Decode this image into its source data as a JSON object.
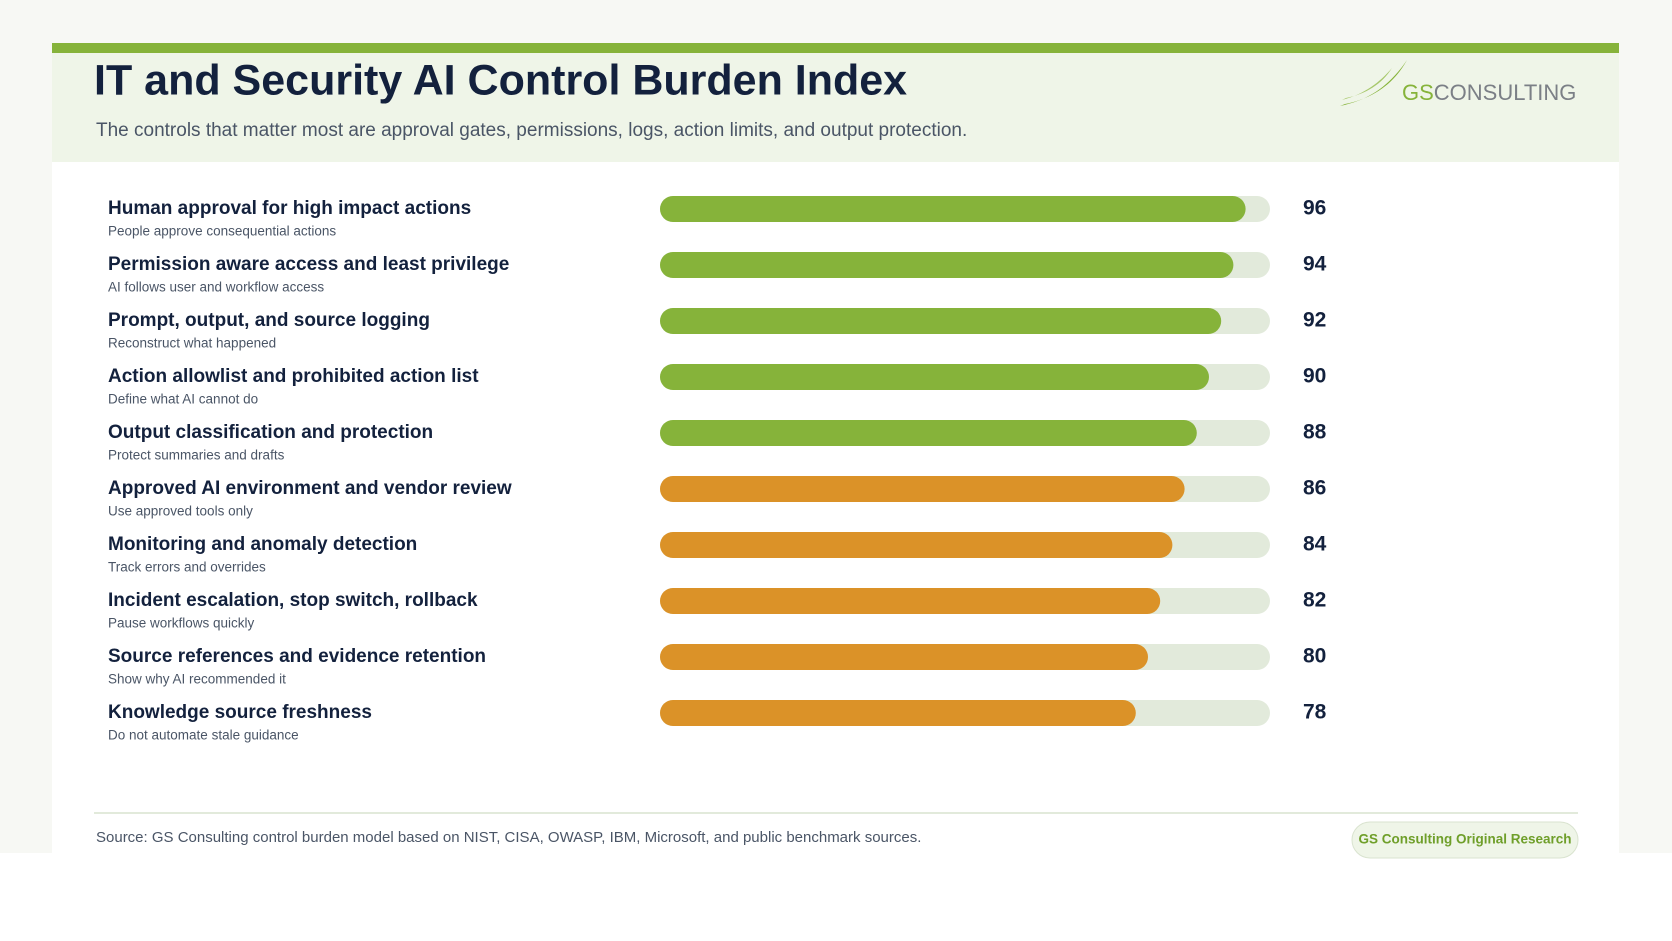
{
  "chart_data": {
    "type": "bar",
    "orientation": "horizontal",
    "title": "IT and Security AI Control Burden Index",
    "subtitle": "The controls that matter most are approval gates, permissions, logs, action limits, and output protection.",
    "categories": [
      "Human approval for high impact actions",
      "Permission aware access and least privilege",
      "Prompt, output, and source logging",
      "Action allowlist and prohibited action list",
      "Output classification and protection",
      "Approved AI environment and vendor review",
      "Monitoring and anomaly detection",
      "Incident escalation, stop switch, rollback",
      "Source references and evidence retention",
      "Knowledge source freshness"
    ],
    "descriptions": [
      "People approve consequential actions",
      "AI follows user and workflow access",
      "Reconstruct what happened",
      "Define what AI cannot do",
      "Protect summaries and drafts",
      "Use approved tools only",
      "Track errors and overrides",
      "Pause workflows quickly",
      "Show why AI recommended it",
      "Do not automate stale guidance"
    ],
    "values": [
      96,
      94,
      92,
      90,
      88,
      86,
      84,
      82,
      80,
      78
    ],
    "colors": [
      "#86b33a",
      "#86b33a",
      "#86b33a",
      "#86b33a",
      "#86b33a",
      "#db9228",
      "#db9228",
      "#db9228",
      "#db9228",
      "#db9228"
    ],
    "track_color": "#e2eadb",
    "xlim": [
      0,
      100
    ],
    "source": "Source: GS Consulting control burden model based on NIST, CISA, OWASP, IBM, Microsoft, and public benchmark sources."
  },
  "logo": {
    "brand": "GS",
    "name": "CONSULTING"
  },
  "badge": "GS Consulting Original Research"
}
